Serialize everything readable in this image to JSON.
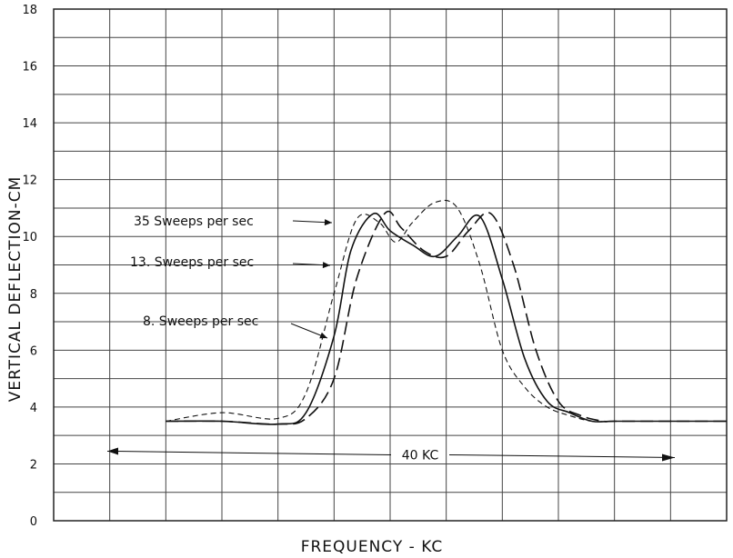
{
  "chart_data": {
    "type": "line",
    "title": "",
    "xlabel": "FREQUENCY - KC",
    "ylabel": "VERTICAL DEFLECTION-CM",
    "ylim": [
      0,
      18
    ],
    "yticks": [
      0,
      2,
      4,
      6,
      8,
      10,
      12,
      14,
      16,
      18
    ],
    "xticks_labeled": false,
    "grid": true,
    "span_annotation": "40 KC",
    "series": [
      {
        "name": "35 Sweeps per sec",
        "style": "short-dash",
        "x": [
          2,
          3,
          4,
          4.5,
          5,
          5.4,
          5.8,
          6.1,
          6.4,
          6.8,
          7.2,
          7.6,
          8,
          8.4,
          8.8,
          9.2,
          9.6,
          10,
          11,
          12
        ],
        "values": [
          3.5,
          3.8,
          3.6,
          4.5,
          8.0,
          10.6,
          10.5,
          9.8,
          10.5,
          11.2,
          11.0,
          9.0,
          6.0,
          4.7,
          4.0,
          3.7,
          3.5,
          3.5,
          3.5,
          3.5
        ]
      },
      {
        "name": "13 Sweeps per sec",
        "style": "solid",
        "x": [
          2,
          3,
          4,
          4.5,
          5,
          5.3,
          5.7,
          6.0,
          6.4,
          6.8,
          7.2,
          7.6,
          8,
          8.4,
          8.8,
          9.2,
          9.6,
          10,
          11,
          12
        ],
        "values": [
          3.5,
          3.5,
          3.4,
          3.8,
          6.5,
          9.5,
          10.8,
          10.2,
          9.7,
          9.3,
          10.0,
          10.7,
          8.5,
          5.7,
          4.2,
          3.8,
          3.5,
          3.5,
          3.5,
          3.5
        ]
      },
      {
        "name": "8 Sweeps per sec",
        "style": "long-dash",
        "x": [
          2,
          3,
          4,
          4.5,
          5,
          5.4,
          5.9,
          6.2,
          6.6,
          7.0,
          7.4,
          7.8,
          8.2,
          8.6,
          9.0,
          9.4,
          9.8,
          10,
          11,
          12
        ],
        "values": [
          3.5,
          3.5,
          3.4,
          3.6,
          5.0,
          8.5,
          10.8,
          10.3,
          9.5,
          9.3,
          10.2,
          10.8,
          9.0,
          6.0,
          4.2,
          3.7,
          3.5,
          3.5,
          3.5,
          3.5
        ]
      }
    ],
    "annotations": [
      {
        "text": "35 Sweeps per sec",
        "target_series": 0
      },
      {
        "text": "13. Sweeps per sec",
        "target_series": 1
      },
      {
        "text": "8. Sweeps per sec",
        "target_series": 2
      }
    ]
  }
}
